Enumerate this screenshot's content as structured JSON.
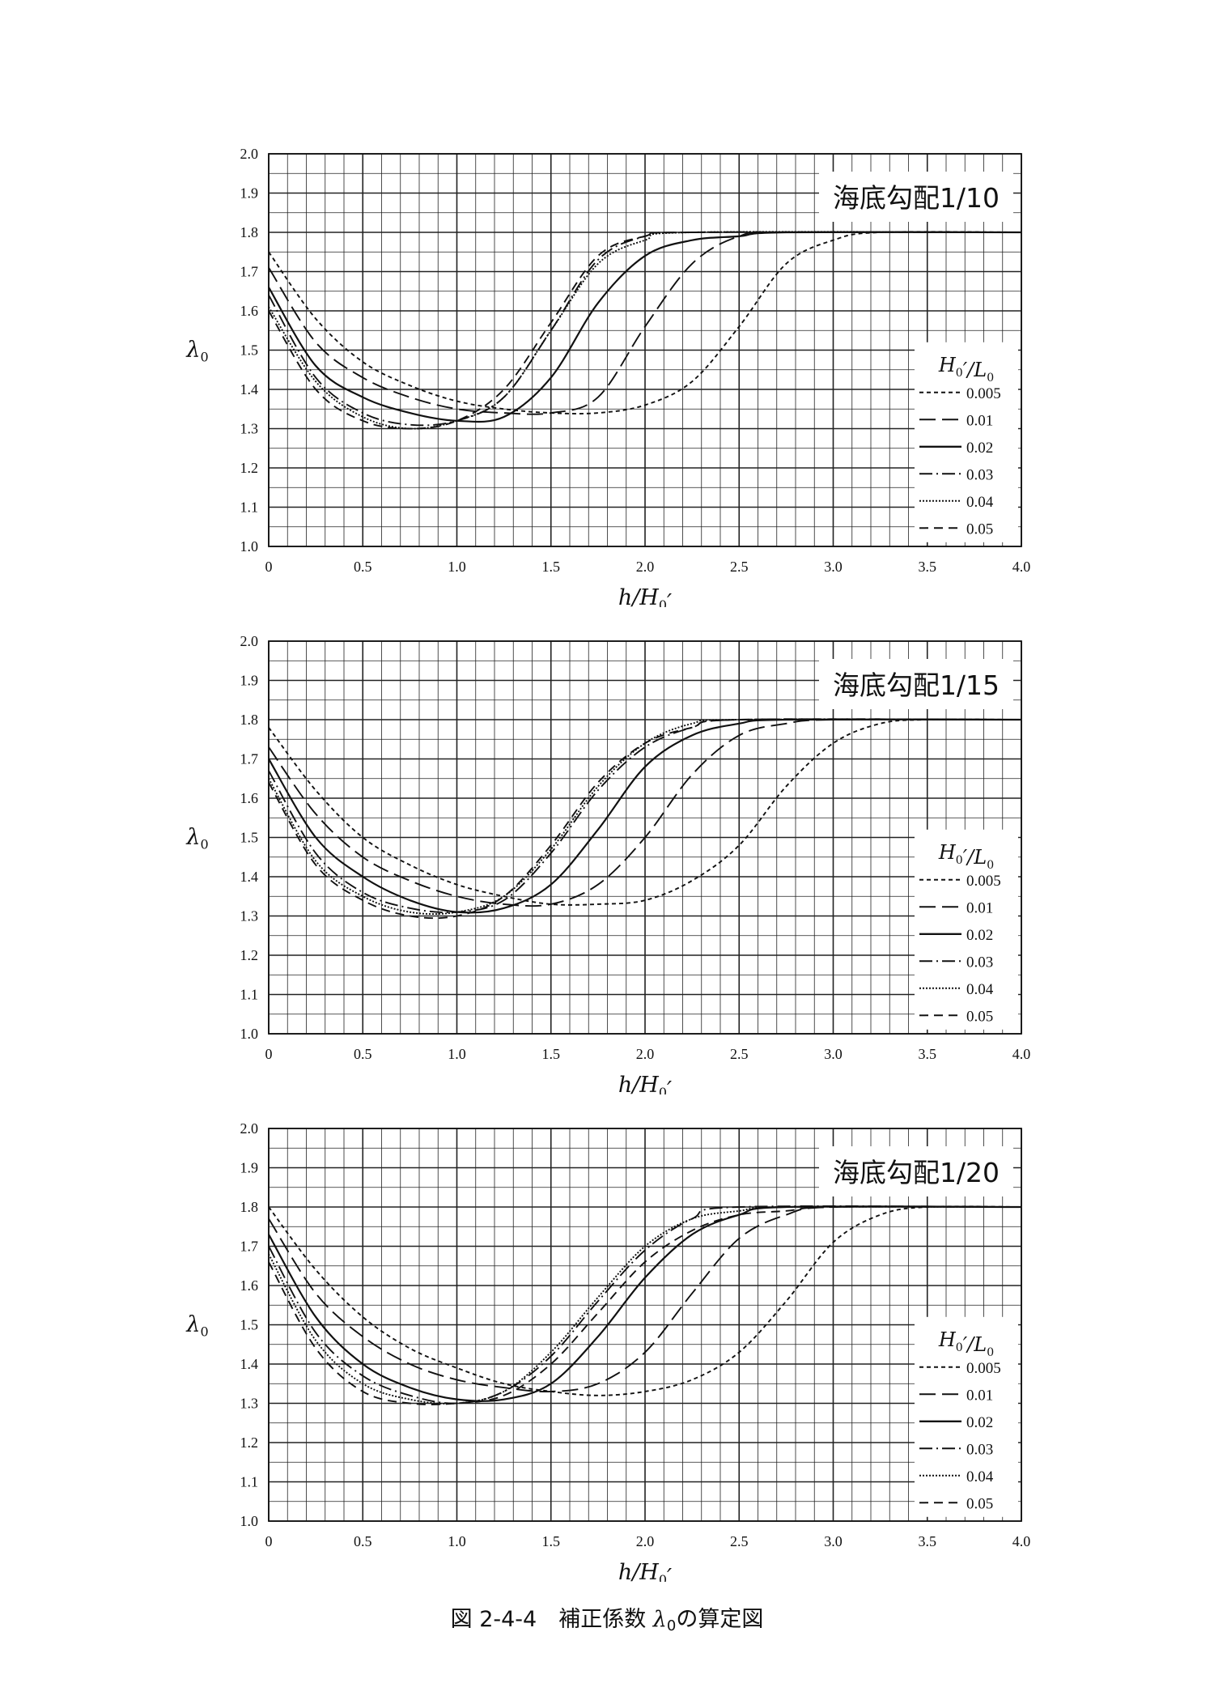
{
  "caption": {
    "prefix": "図 2-4-4　補正係数 ",
    "symbol": "λ",
    "symbol_sub": "0",
    "suffix": "の算定図"
  },
  "chart_data": [
    {
      "type": "line",
      "title": "海底勾配1/10",
      "xlabel": "h/H₀′",
      "ylabel": "λ₀",
      "xlim": [
        0,
        4.0
      ],
      "ylim": [
        1.0,
        2.0
      ],
      "x_ticks": [
        "0",
        "0.5",
        "1.0",
        "1.5",
        "2.0",
        "2.5",
        "3.0",
        "3.5",
        "4.0"
      ],
      "y_ticks": [
        "1.0",
        "1.1",
        "1.2",
        "1.3",
        "1.4",
        "1.5",
        "1.6",
        "1.7",
        "1.8",
        "1.9",
        "2.0"
      ],
      "grid": true,
      "legend_title": "H₀′/L₀",
      "legend_position": "right",
      "series": [
        {
          "name": "0.005",
          "style": "short-dash",
          "points": [
            [
              0,
              1.75
            ],
            [
              0.25,
              1.58
            ],
            [
              0.5,
              1.47
            ],
            [
              0.75,
              1.41
            ],
            [
              1.0,
              1.37
            ],
            [
              1.25,
              1.35
            ],
            [
              1.5,
              1.34
            ],
            [
              1.75,
              1.34
            ],
            [
              2.0,
              1.36
            ],
            [
              2.25,
              1.42
            ],
            [
              2.5,
              1.56
            ],
            [
              2.75,
              1.72
            ],
            [
              3.0,
              1.78
            ],
            [
              3.25,
              1.8
            ],
            [
              4.0,
              1.8
            ]
          ]
        },
        {
          "name": "0.01",
          "style": "long-dash",
          "points": [
            [
              0,
              1.71
            ],
            [
              0.25,
              1.52
            ],
            [
              0.5,
              1.43
            ],
            [
              0.75,
              1.38
            ],
            [
              1.0,
              1.35
            ],
            [
              1.25,
              1.34
            ],
            [
              1.5,
              1.34
            ],
            [
              1.75,
              1.38
            ],
            [
              2.0,
              1.56
            ],
            [
              2.25,
              1.72
            ],
            [
              2.5,
              1.79
            ],
            [
              2.75,
              1.8
            ],
            [
              4.0,
              1.8
            ]
          ]
        },
        {
          "name": "0.02",
          "style": "solid",
          "points": [
            [
              0,
              1.66
            ],
            [
              0.25,
              1.46
            ],
            [
              0.5,
              1.38
            ],
            [
              0.75,
              1.34
            ],
            [
              1.0,
              1.32
            ],
            [
              1.25,
              1.33
            ],
            [
              1.5,
              1.43
            ],
            [
              1.75,
              1.62
            ],
            [
              2.0,
              1.74
            ],
            [
              2.25,
              1.78
            ],
            [
              2.5,
              1.79
            ],
            [
              2.75,
              1.8
            ],
            [
              4.0,
              1.8
            ]
          ]
        },
        {
          "name": "0.03",
          "style": "dash-dot",
          "points": [
            [
              0,
              1.64
            ],
            [
              0.25,
              1.43
            ],
            [
              0.5,
              1.34
            ],
            [
              0.75,
              1.31
            ],
            [
              1.0,
              1.32
            ],
            [
              1.25,
              1.38
            ],
            [
              1.5,
              1.55
            ],
            [
              1.75,
              1.73
            ],
            [
              2.0,
              1.79
            ],
            [
              2.25,
              1.8
            ],
            [
              4.0,
              1.8
            ]
          ]
        },
        {
          "name": "0.04",
          "style": "dotted",
          "points": [
            [
              0,
              1.61
            ],
            [
              0.25,
              1.42
            ],
            [
              0.5,
              1.33
            ],
            [
              0.75,
              1.3
            ],
            [
              1.0,
              1.32
            ],
            [
              1.25,
              1.38
            ],
            [
              1.5,
              1.55
            ],
            [
              1.75,
              1.72
            ],
            [
              2.0,
              1.78
            ],
            [
              2.25,
              1.8
            ],
            [
              4.0,
              1.8
            ]
          ]
        },
        {
          "name": "0.05",
          "style": "medium-dash",
          "points": [
            [
              0,
              1.6
            ],
            [
              0.25,
              1.4
            ],
            [
              0.5,
              1.32
            ],
            [
              0.75,
              1.3
            ],
            [
              1.0,
              1.32
            ],
            [
              1.25,
              1.4
            ],
            [
              1.5,
              1.57
            ],
            [
              1.75,
              1.74
            ],
            [
              2.0,
              1.79
            ],
            [
              2.25,
              1.8
            ],
            [
              4.0,
              1.8
            ]
          ]
        }
      ]
    },
    {
      "type": "line",
      "title": "海底勾配1/15",
      "xlabel": "h/H₀′",
      "ylabel": "λ₀",
      "xlim": [
        0,
        4.0
      ],
      "ylim": [
        1.0,
        2.0
      ],
      "x_ticks": [
        "0",
        "0.5",
        "1.0",
        "1.5",
        "2.0",
        "2.5",
        "3.0",
        "3.5",
        "4.0"
      ],
      "y_ticks": [
        "1.0",
        "1.1",
        "1.2",
        "1.3",
        "1.4",
        "1.5",
        "1.6",
        "1.7",
        "1.8",
        "1.9",
        "2.0"
      ],
      "grid": true,
      "legend_title": "H₀′/L₀",
      "legend_position": "right",
      "series": [
        {
          "name": "0.005",
          "style": "short-dash",
          "points": [
            [
              0,
              1.78
            ],
            [
              0.25,
              1.62
            ],
            [
              0.5,
              1.5
            ],
            [
              0.75,
              1.43
            ],
            [
              1.0,
              1.38
            ],
            [
              1.25,
              1.35
            ],
            [
              1.5,
              1.33
            ],
            [
              1.75,
              1.33
            ],
            [
              2.0,
              1.34
            ],
            [
              2.25,
              1.39
            ],
            [
              2.5,
              1.48
            ],
            [
              2.75,
              1.63
            ],
            [
              3.0,
              1.74
            ],
            [
              3.25,
              1.79
            ],
            [
              3.5,
              1.8
            ],
            [
              4.0,
              1.8
            ]
          ]
        },
        {
          "name": "0.01",
          "style": "long-dash",
          "points": [
            [
              0,
              1.73
            ],
            [
              0.25,
              1.56
            ],
            [
              0.5,
              1.45
            ],
            [
              0.75,
              1.39
            ],
            [
              1.0,
              1.35
            ],
            [
              1.25,
              1.33
            ],
            [
              1.5,
              1.33
            ],
            [
              1.75,
              1.38
            ],
            [
              2.0,
              1.5
            ],
            [
              2.25,
              1.66
            ],
            [
              2.5,
              1.76
            ],
            [
              2.75,
              1.79
            ],
            [
              3.0,
              1.8
            ],
            [
              4.0,
              1.8
            ]
          ]
        },
        {
          "name": "0.02",
          "style": "solid",
          "points": [
            [
              0,
              1.7
            ],
            [
              0.25,
              1.5
            ],
            [
              0.5,
              1.4
            ],
            [
              0.75,
              1.34
            ],
            [
              1.0,
              1.31
            ],
            [
              1.25,
              1.32
            ],
            [
              1.5,
              1.38
            ],
            [
              1.75,
              1.52
            ],
            [
              2.0,
              1.68
            ],
            [
              2.25,
              1.76
            ],
            [
              2.5,
              1.79
            ],
            [
              2.75,
              1.8
            ],
            [
              4.0,
              1.8
            ]
          ]
        },
        {
          "name": "0.03",
          "style": "dash-dot",
          "points": [
            [
              0,
              1.67
            ],
            [
              0.25,
              1.46
            ],
            [
              0.5,
              1.36
            ],
            [
              0.75,
              1.32
            ],
            [
              1.0,
              1.31
            ],
            [
              1.25,
              1.34
            ],
            [
              1.5,
              1.46
            ],
            [
              1.75,
              1.62
            ],
            [
              2.0,
              1.73
            ],
            [
              2.25,
              1.78
            ],
            [
              2.5,
              1.8
            ],
            [
              4.0,
              1.8
            ]
          ]
        },
        {
          "name": "0.04",
          "style": "dotted",
          "points": [
            [
              0,
              1.65
            ],
            [
              0.25,
              1.44
            ],
            [
              0.5,
              1.35
            ],
            [
              0.75,
              1.31
            ],
            [
              1.0,
              1.31
            ],
            [
              1.25,
              1.35
            ],
            [
              1.5,
              1.47
            ],
            [
              1.75,
              1.63
            ],
            [
              2.0,
              1.74
            ],
            [
              2.25,
              1.79
            ],
            [
              2.5,
              1.8
            ],
            [
              4.0,
              1.8
            ]
          ]
        },
        {
          "name": "0.05",
          "style": "medium-dash",
          "points": [
            [
              0,
              1.64
            ],
            [
              0.25,
              1.43
            ],
            [
              0.5,
              1.34
            ],
            [
              0.75,
              1.3
            ],
            [
              1.0,
              1.3
            ],
            [
              1.25,
              1.35
            ],
            [
              1.5,
              1.48
            ],
            [
              1.75,
              1.64
            ],
            [
              2.0,
              1.74
            ],
            [
              2.25,
              1.78
            ],
            [
              2.5,
              1.8
            ],
            [
              4.0,
              1.8
            ]
          ]
        }
      ]
    },
    {
      "type": "line",
      "title": "海底勾配1/20",
      "xlabel": "h/H₀′",
      "ylabel": "λ₀",
      "xlim": [
        0,
        4.0
      ],
      "ylim": [
        1.0,
        2.0
      ],
      "x_ticks": [
        "0",
        "0.5",
        "1.0",
        "1.5",
        "2.0",
        "2.5",
        "3.0",
        "3.5",
        "4.0"
      ],
      "y_ticks": [
        "1.0",
        "1.1",
        "1.2",
        "1.3",
        "1.4",
        "1.5",
        "1.6",
        "1.7",
        "1.8",
        "1.9",
        "2.0"
      ],
      "grid": true,
      "legend_title": "H₀′/L₀",
      "legend_position": "right",
      "series": [
        {
          "name": "0.005",
          "style": "short-dash",
          "points": [
            [
              0,
              1.8
            ],
            [
              0.25,
              1.64
            ],
            [
              0.5,
              1.52
            ],
            [
              0.75,
              1.44
            ],
            [
              1.0,
              1.39
            ],
            [
              1.25,
              1.35
            ],
            [
              1.5,
              1.33
            ],
            [
              1.75,
              1.32
            ],
            [
              2.0,
              1.33
            ],
            [
              2.25,
              1.36
            ],
            [
              2.5,
              1.43
            ],
            [
              2.75,
              1.56
            ],
            [
              3.0,
              1.71
            ],
            [
              3.25,
              1.78
            ],
            [
              3.5,
              1.8
            ],
            [
              4.0,
              1.8
            ]
          ]
        },
        {
          "name": "0.01",
          "style": "long-dash",
          "points": [
            [
              0,
              1.77
            ],
            [
              0.25,
              1.58
            ],
            [
              0.5,
              1.47
            ],
            [
              0.75,
              1.4
            ],
            [
              1.0,
              1.36
            ],
            [
              1.25,
              1.34
            ],
            [
              1.5,
              1.33
            ],
            [
              1.75,
              1.35
            ],
            [
              2.0,
              1.43
            ],
            [
              2.25,
              1.58
            ],
            [
              2.5,
              1.72
            ],
            [
              2.75,
              1.78
            ],
            [
              3.0,
              1.8
            ],
            [
              4.0,
              1.8
            ]
          ]
        },
        {
          "name": "0.02",
          "style": "solid",
          "points": [
            [
              0,
              1.73
            ],
            [
              0.25,
              1.52
            ],
            [
              0.5,
              1.4
            ],
            [
              0.75,
              1.34
            ],
            [
              1.0,
              1.31
            ],
            [
              1.25,
              1.31
            ],
            [
              1.5,
              1.35
            ],
            [
              1.75,
              1.47
            ],
            [
              2.0,
              1.62
            ],
            [
              2.25,
              1.73
            ],
            [
              2.5,
              1.78
            ],
            [
              2.75,
              1.8
            ],
            [
              4.0,
              1.8
            ]
          ]
        },
        {
          "name": "0.03",
          "style": "dash-dot",
          "points": [
            [
              0,
              1.7
            ],
            [
              0.25,
              1.48
            ],
            [
              0.5,
              1.37
            ],
            [
              0.75,
              1.32
            ],
            [
              1.0,
              1.3
            ],
            [
              1.25,
              1.33
            ],
            [
              1.5,
              1.42
            ],
            [
              1.75,
              1.56
            ],
            [
              2.0,
              1.69
            ],
            [
              2.25,
              1.77
            ],
            [
              2.5,
              1.8
            ],
            [
              4.0,
              1.8
            ]
          ]
        },
        {
          "name": "0.04",
          "style": "dotted",
          "points": [
            [
              0,
              1.68
            ],
            [
              0.25,
              1.46
            ],
            [
              0.5,
              1.35
            ],
            [
              0.75,
              1.31
            ],
            [
              1.0,
              1.3
            ],
            [
              1.25,
              1.33
            ],
            [
              1.5,
              1.43
            ],
            [
              1.75,
              1.57
            ],
            [
              2.0,
              1.7
            ],
            [
              2.25,
              1.77
            ],
            [
              2.5,
              1.79
            ],
            [
              2.75,
              1.8
            ],
            [
              4.0,
              1.8
            ]
          ]
        },
        {
          "name": "0.05",
          "style": "medium-dash",
          "points": [
            [
              0,
              1.66
            ],
            [
              0.25,
              1.44
            ],
            [
              0.5,
              1.33
            ],
            [
              0.75,
              1.3
            ],
            [
              1.0,
              1.3
            ],
            [
              1.25,
              1.32
            ],
            [
              1.5,
              1.4
            ],
            [
              1.75,
              1.53
            ],
            [
              2.0,
              1.66
            ],
            [
              2.25,
              1.74
            ],
            [
              2.5,
              1.78
            ],
            [
              2.75,
              1.79
            ],
            [
              3.0,
              1.8
            ],
            [
              4.0,
              1.8
            ]
          ]
        }
      ]
    }
  ]
}
